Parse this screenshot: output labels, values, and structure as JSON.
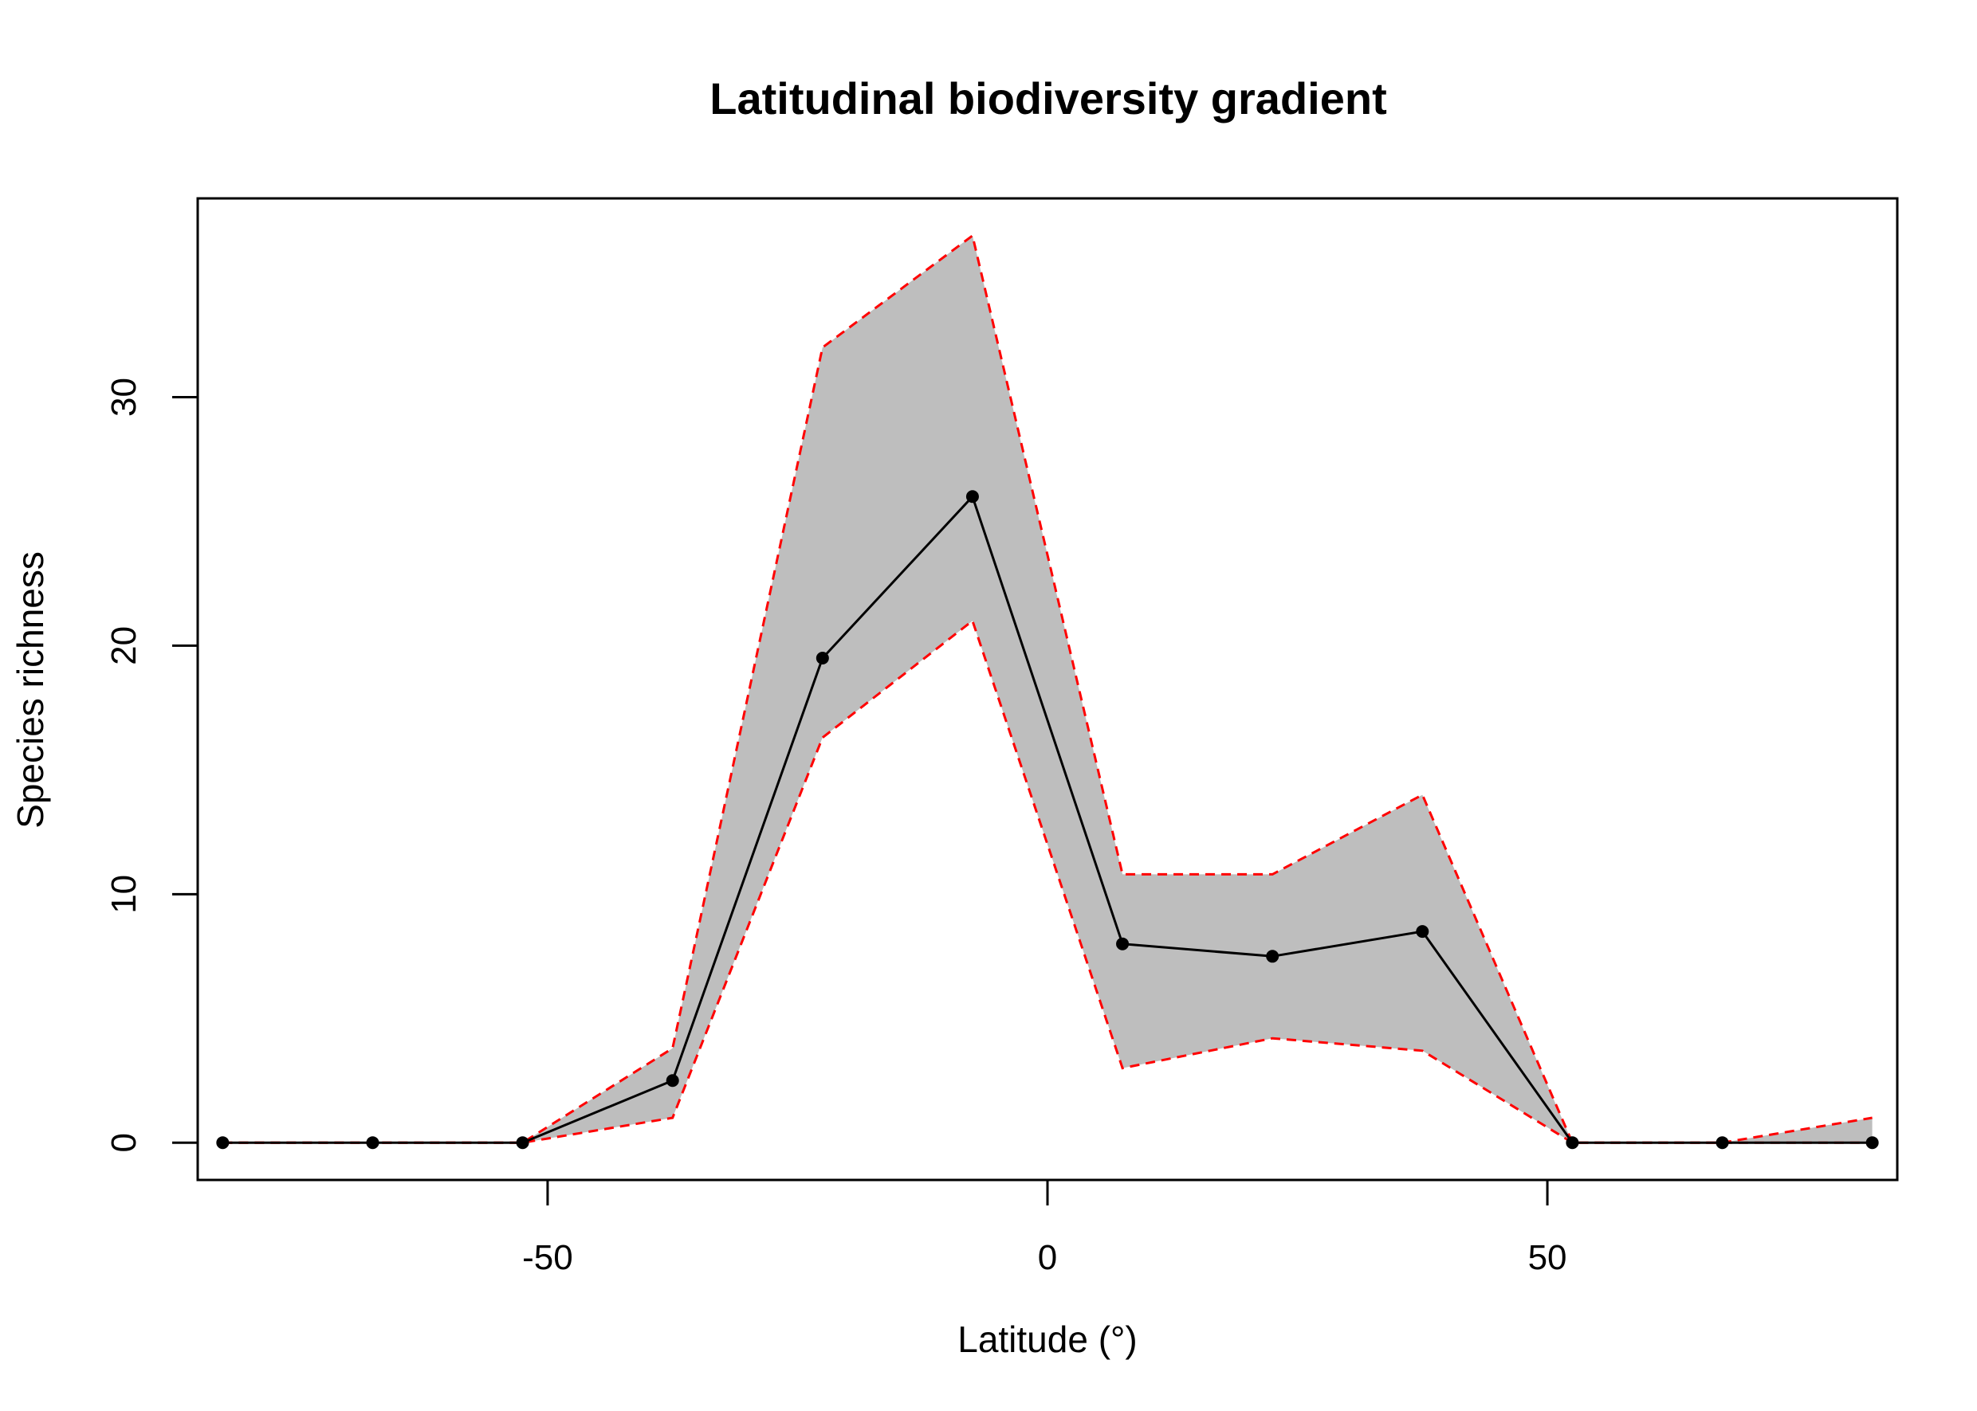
{
  "chart_data": {
    "type": "line",
    "title": "Latitudinal biodiversity gradient",
    "xlabel": "Latitude (°)",
    "ylabel": "Species richness",
    "xlim": [
      -85,
      85
    ],
    "ylim": [
      -1.5,
      38
    ],
    "xticks": [
      -50,
      0,
      50
    ],
    "yticks": [
      0,
      10,
      20,
      30
    ],
    "x": [
      -82.5,
      -67.5,
      -52.5,
      -37.5,
      -22.5,
      -7.5,
      7.5,
      22.5,
      37.5,
      52.5,
      67.5,
      82.5
    ],
    "series": [
      {
        "role": "mean",
        "values": [
          0,
          0,
          0,
          2.5,
          19.5,
          26,
          8,
          7.5,
          8.5,
          0,
          0,
          0
        ]
      },
      {
        "role": "upper",
        "values": [
          0,
          0,
          0,
          3.8,
          32,
          36.5,
          10.8,
          10.8,
          14,
          0,
          0,
          1
        ]
      },
      {
        "role": "lower",
        "values": [
          0,
          0,
          0,
          1,
          16.3,
          21,
          3,
          4.2,
          3.7,
          0,
          0,
          0
        ]
      }
    ],
    "colors": {
      "band": "#bebebe",
      "bounds": "#ff0000",
      "mean": "#000000"
    },
    "grid": false,
    "legend": "none"
  }
}
